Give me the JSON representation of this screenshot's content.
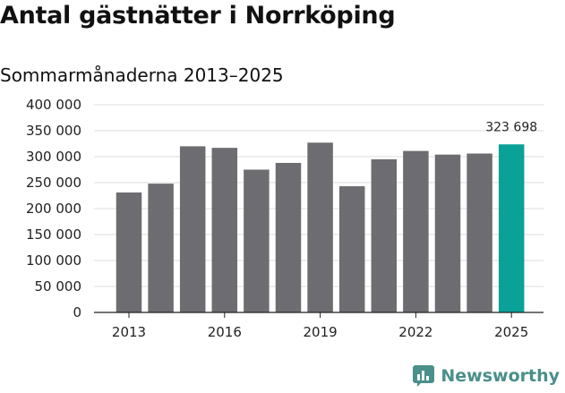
{
  "title": "Antal gästnätter i Norrköping",
  "subtitle": "Sommarmånaderna 2013–2025",
  "brand": {
    "name": "Newsworthy",
    "icon": "newsworthy-logo-icon",
    "color": "#4a8f8a"
  },
  "colors": {
    "bar": "#6d6c70",
    "highlight": "#0aa198",
    "grid": "#dcdcdc",
    "axis": "#222222"
  },
  "chart_data": {
    "type": "bar",
    "categories": [
      "2013",
      "2014",
      "2015",
      "2016",
      "2017",
      "2018",
      "2019",
      "2020",
      "2021",
      "2022",
      "2023",
      "2024",
      "2025"
    ],
    "values": [
      231000,
      248000,
      320000,
      317000,
      275000,
      288000,
      327000,
      243000,
      295000,
      311000,
      304000,
      306000,
      323698
    ],
    "highlight_index": 12,
    "data_labels": [
      {
        "index": 12,
        "text": "323 698"
      }
    ],
    "x_tick_labels": [
      "2013",
      "2016",
      "2019",
      "2022",
      "2025"
    ],
    "y_ticks": [
      0,
      50000,
      100000,
      150000,
      200000,
      250000,
      300000,
      350000,
      400000
    ],
    "y_tick_labels": [
      "0",
      "50 000",
      "100 000",
      "150 000",
      "200 000",
      "250 000",
      "300 000",
      "350 000",
      "400 000"
    ],
    "ylim": [
      0,
      400000
    ],
    "grid": true,
    "legend": "none",
    "xlabel": "",
    "ylabel": ""
  }
}
